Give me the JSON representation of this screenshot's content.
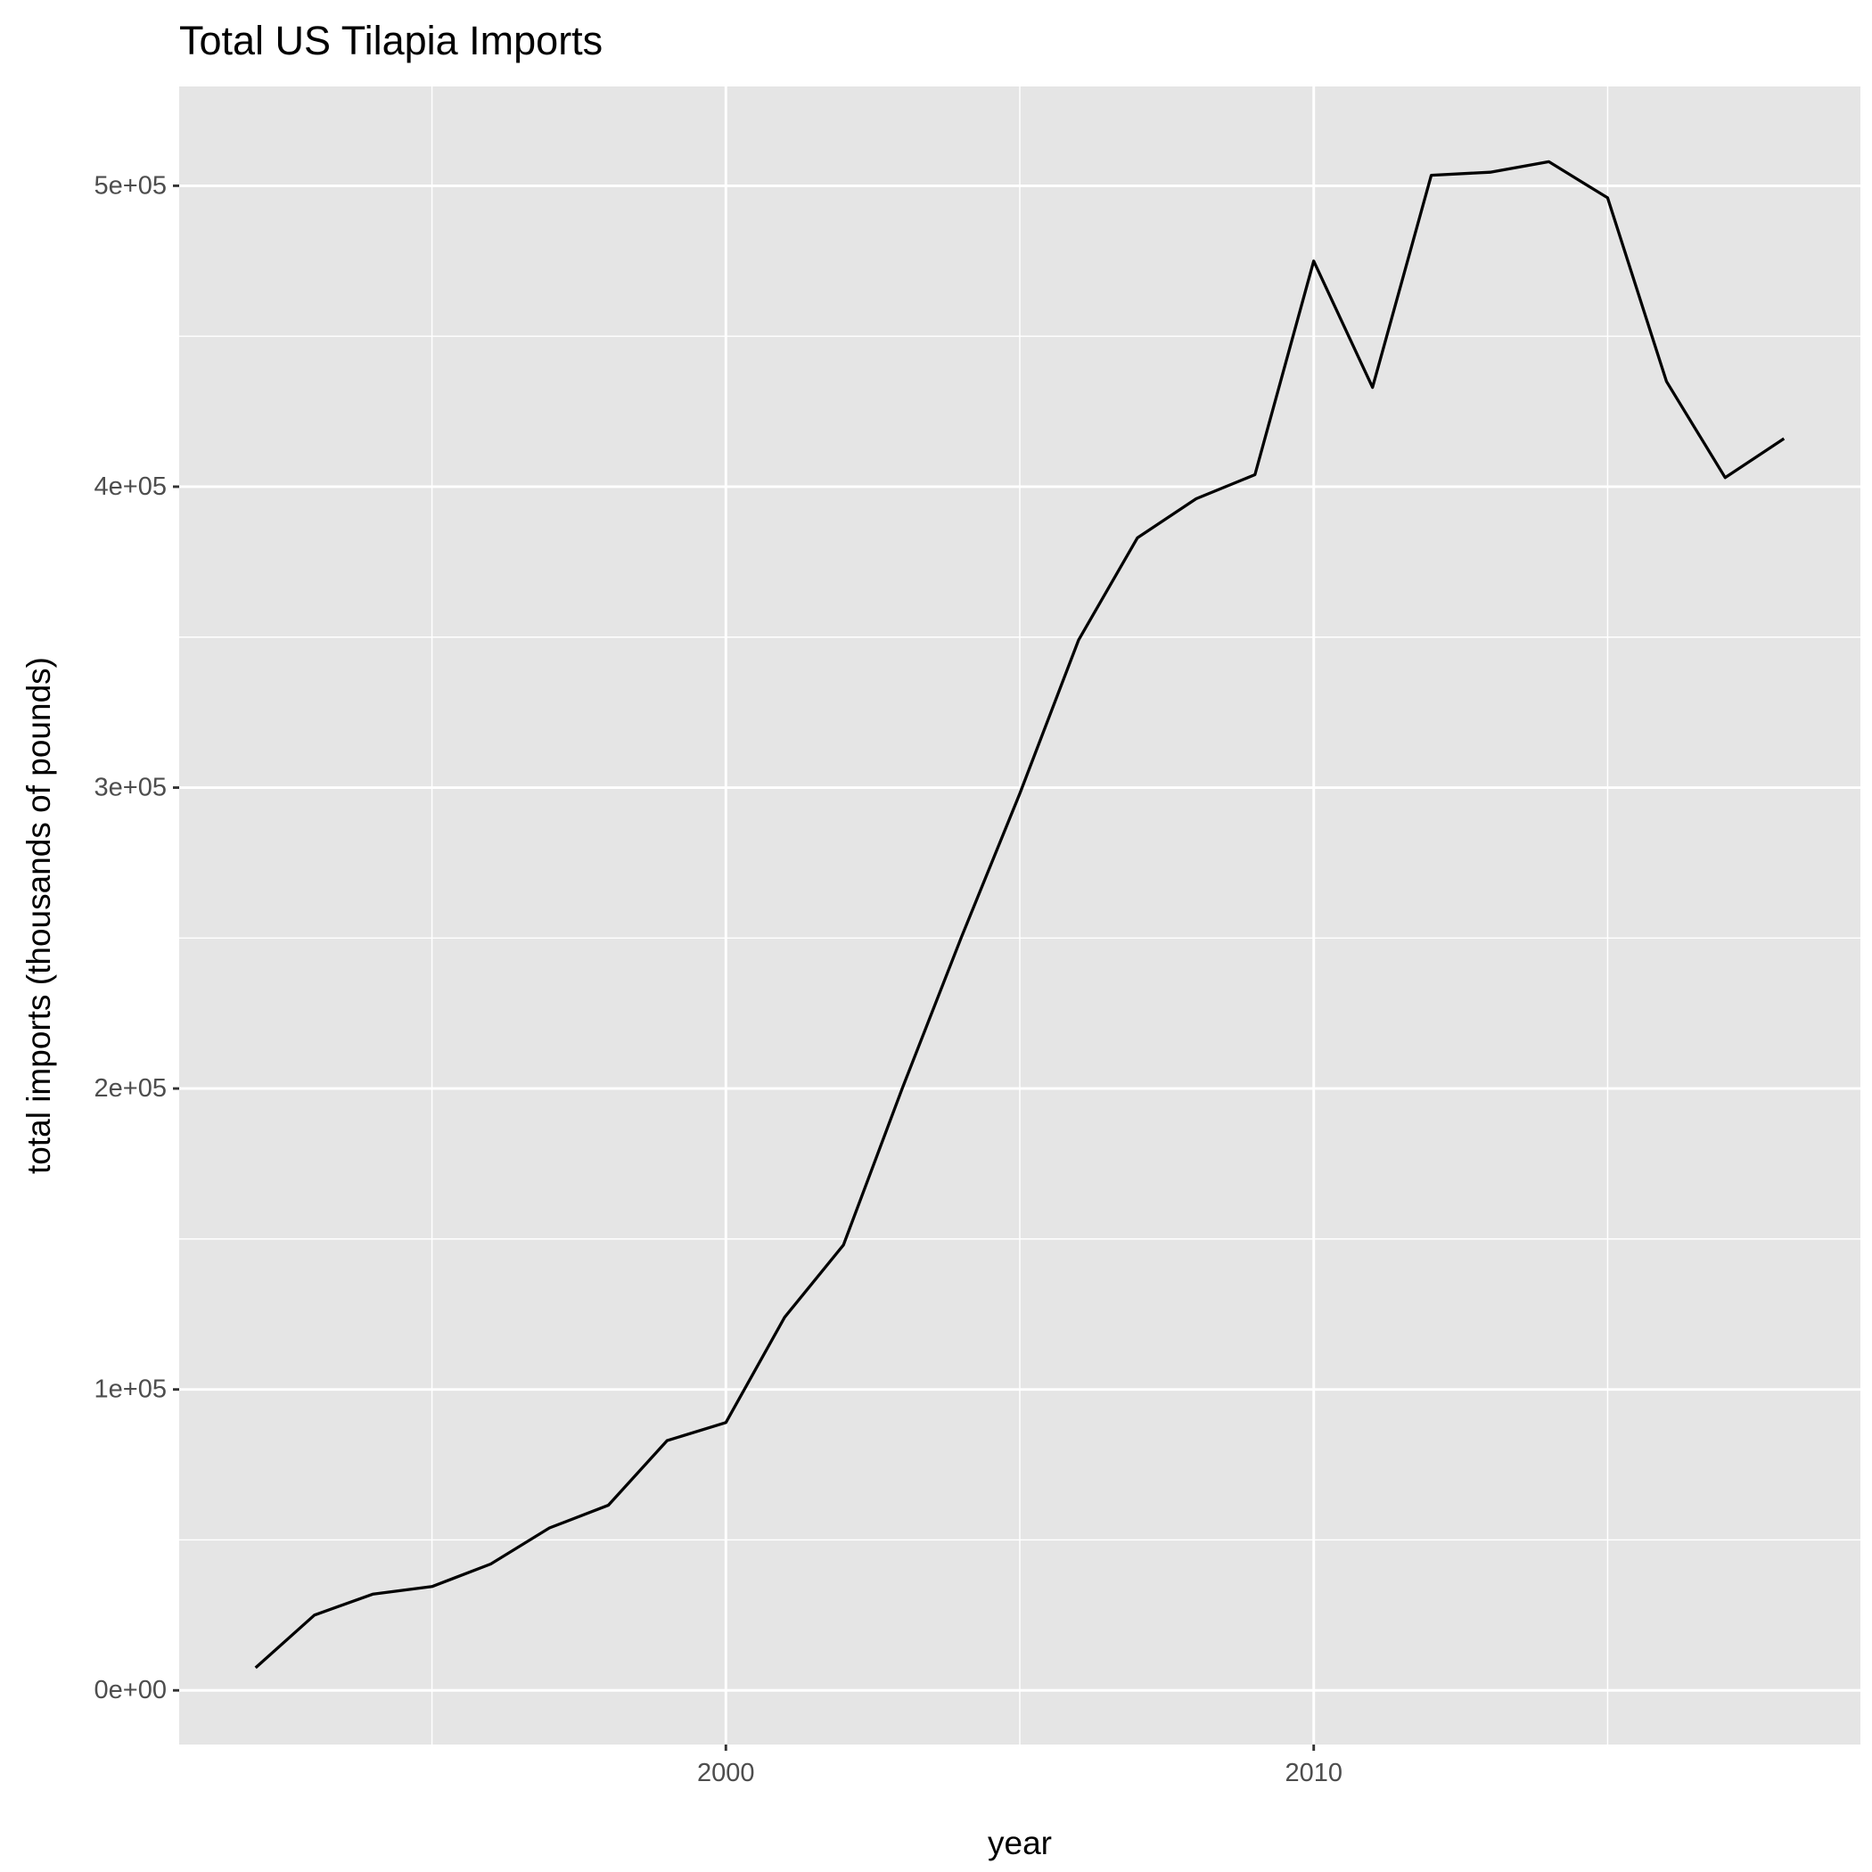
{
  "chart_data": {
    "type": "line",
    "title": "Total US Tilapia Imports",
    "xlabel": "year",
    "ylabel": "total imports (thousands of pounds)",
    "x": [
      1992,
      1993,
      1994,
      1995,
      1996,
      1997,
      1998,
      1999,
      2000,
      2001,
      2002,
      2003,
      2004,
      2005,
      2006,
      2007,
      2008,
      2009,
      2010,
      2011,
      2012,
      2013,
      2014,
      2015,
      2016,
      2017,
      2018
    ],
    "series": [
      {
        "values": [
          7500,
          25000,
          32000,
          34500,
          42000,
          54000,
          61500,
          83000,
          89000,
          124000,
          148000,
          200000,
          250000,
          298000,
          349000,
          383000,
          396000,
          404000,
          475000,
          433000,
          503500,
          504500,
          508000,
          496000,
          435000,
          403000,
          416000
        ],
        "color": "#000000"
      }
    ],
    "xlim": [
      1990.7,
      2019.3
    ],
    "ylim": [
      -18000,
      533000
    ],
    "x_ticks": [
      2000,
      2010
    ],
    "x_tick_labels": [
      "2000",
      "2010"
    ],
    "x_minor_ticks": [
      1995,
      2005,
      2015
    ],
    "y_ticks": [
      0,
      100000,
      200000,
      300000,
      400000,
      500000
    ],
    "y_tick_labels": [
      "0e+00",
      "1e+05",
      "2e+05",
      "3e+05",
      "4e+05",
      "5e+05"
    ],
    "y_minor_ticks": [
      50000,
      150000,
      250000,
      350000,
      450000
    ],
    "grid": true,
    "legend": "none",
    "panel_background": "#e5e5e5",
    "grid_color": "#ffffff"
  }
}
